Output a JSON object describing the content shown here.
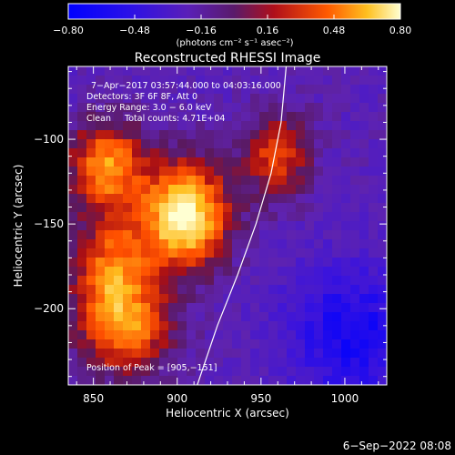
{
  "chart_data": {
    "type": "heatmap",
    "title": "Reconstructed RHESSI Image",
    "xlabel": "Heliocentric X (arcsec)",
    "ylabel": "Heliocentric Y (arcsec)",
    "xlim": [
      835,
      1025
    ],
    "ylim": [
      -245,
      -57
    ],
    "x_ticks": [
      850,
      900,
      950,
      1000
    ],
    "x_tick_labels": [
      "850",
      "900",
      "950",
      "1000"
    ],
    "y_ticks": [
      -100,
      -150,
      -200
    ],
    "y_tick_labels": [
      "−100",
      "−150",
      "−200"
    ],
    "colorbar": {
      "range": [
        -0.8,
        0.8
      ],
      "ticks": [
        -0.8,
        -0.48,
        -0.16,
        0.16,
        0.48,
        0.8
      ],
      "tick_labels": [
        "−0.80",
        "−0.48",
        "−0.16",
        "0.16",
        "0.48",
        "0.80"
      ],
      "units_label": "(photons cm⁻² s⁻¹ asec⁻²)"
    },
    "annotations": [
      "7−Apr−2017 03:57:44.000 to 04:03:16.000",
      "Detectors: 3F 6F 8F, Att 0",
      "Energy Range: 3.0 − 6.0 keV",
      "Clean     Total counts: 4.71E+04"
    ],
    "peak_label": "Position of Peak = [905,−151]",
    "peak": {
      "x": 905,
      "y": -151,
      "value": 0.8
    },
    "emission_sources": [
      {
        "x": 905,
        "y": -145,
        "peak": 0.8,
        "sigma_x": 18,
        "sigma_y": 22
      },
      {
        "x": 858,
        "y": -115,
        "peak": 0.5,
        "sigma_x": 16,
        "sigma_y": 18
      },
      {
        "x": 862,
        "y": -180,
        "peak": 0.45,
        "sigma_x": 18,
        "sigma_y": 24
      },
      {
        "x": 870,
        "y": -215,
        "peak": 0.3,
        "sigma_x": 20,
        "sigma_y": 18
      },
      {
        "x": 960,
        "y": -110,
        "peak": 0.3,
        "sigma_x": 14,
        "sigma_y": 18
      }
    ],
    "background_level": -0.25,
    "limb": [
      [
        965,
        -57
      ],
      [
        962,
        -90
      ],
      [
        956,
        -120
      ],
      [
        947,
        -150
      ],
      [
        936,
        -180
      ],
      [
        924,
        -210
      ],
      [
        912,
        -245
      ]
    ]
  },
  "footer": {
    "date": "6−Sep−2022 08:08"
  }
}
